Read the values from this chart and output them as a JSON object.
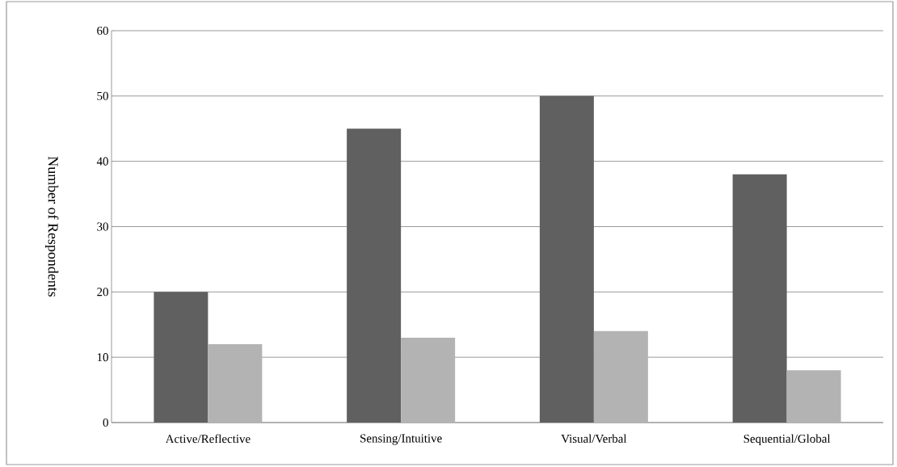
{
  "chart_data": {
    "type": "bar",
    "ylabel": "Number of Respondents",
    "categories": [
      "Active/Reflective",
      "Sensing/Intuitive",
      "Visual/Verbal",
      "Sequential/Global"
    ],
    "series": [
      {
        "color": "#606060",
        "values": [
          20,
          45,
          50,
          38
        ]
      },
      {
        "color": "#b3b3b3",
        "values": [
          12,
          13,
          14,
          8
        ]
      }
    ],
    "ylim": [
      0,
      60
    ],
    "yticks": [
      0,
      10,
      20,
      30,
      40,
      50,
      60
    ],
    "grid": "y"
  }
}
